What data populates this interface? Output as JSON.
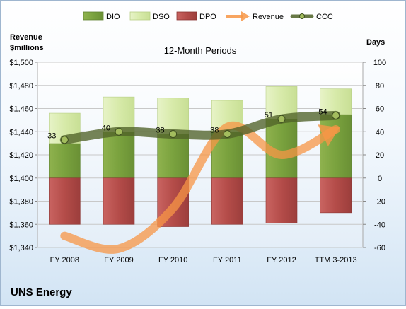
{
  "chart_data": {
    "type": "bar",
    "title": "12-Month Periods",
    "company": "UNS Energy",
    "categories": [
      "FY 2008",
      "FY 2009",
      "FY 2010",
      "FY 2011",
      "FY 2012",
      "TTM 3-2013"
    ],
    "left_axis": {
      "label_line1": "Revenue",
      "label_line2": "$millions",
      "ylim": [
        1340,
        1500
      ],
      "ticks": [
        1340,
        1360,
        1380,
        1400,
        1420,
        1440,
        1460,
        1480,
        1500
      ],
      "tick_labels": [
        "$1,340",
        "$1,360",
        "$1,380",
        "$1,400",
        "$1,420",
        "$1,440",
        "$1,460",
        "$1,480",
        "$1,500"
      ]
    },
    "right_axis": {
      "label": "Days",
      "ylim": [
        -60,
        100
      ],
      "ticks": [
        -60,
        -40,
        -20,
        0,
        20,
        40,
        60,
        80,
        100
      ],
      "tick_labels": [
        "-60",
        "-40",
        "-20",
        "0",
        "20",
        "40",
        "60",
        "80",
        "100"
      ]
    },
    "series": [
      {
        "name": "DIO",
        "axis": "right",
        "kind": "stacked-bar",
        "color": "#78a03c",
        "values": [
          30,
          40,
          38,
          40,
          51,
          55
        ]
      },
      {
        "name": "DSO",
        "axis": "right",
        "kind": "stacked-bar",
        "color": "#d9ecaf",
        "values": [
          26,
          30,
          31,
          27,
          28,
          22
        ]
      },
      {
        "name": "DPO",
        "axis": "right",
        "kind": "stacked-bar-negative",
        "color": "#c0504d",
        "values": [
          -40,
          -40,
          -42,
          -40,
          -39,
          -30
        ]
      },
      {
        "name": "Revenue",
        "axis": "left",
        "kind": "line",
        "color": "#f79646",
        "values": [
          1350,
          1339,
          1374,
          1444,
          1420,
          1442
        ]
      },
      {
        "name": "CCC",
        "axis": "right",
        "kind": "line",
        "color": "#4f6228",
        "values": [
          33,
          40,
          38,
          38,
          51,
          54
        ]
      }
    ],
    "ccc_labels": [
      "33",
      "40",
      "38",
      "38",
      "51",
      "54"
    ],
    "legend": [
      "DIO",
      "DSO",
      "DPO",
      "Revenue",
      "CCC"
    ],
    "legend_position": "top",
    "grid": true
  }
}
